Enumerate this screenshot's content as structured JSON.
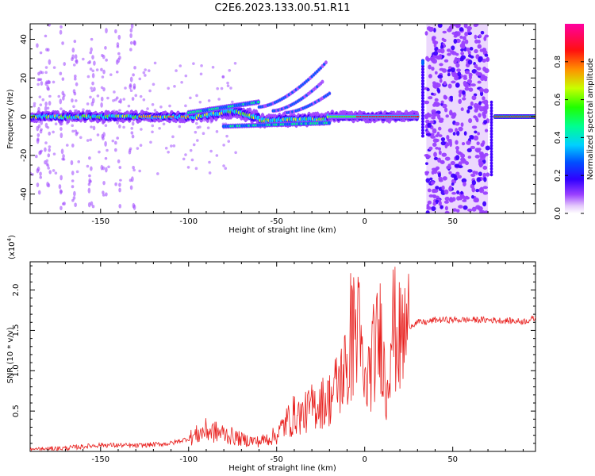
{
  "title": "C2E6.2023.133.00.51.R11",
  "chart_data": [
    {
      "type": "heatmap",
      "xlabel": "Height of straight line (km)",
      "ylabel": "Frequency (Hz)",
      "xlim": [
        -190,
        97
      ],
      "ylim": [
        -50,
        48
      ],
      "x_ticks": [
        -150,
        -100,
        -50,
        0,
        50
      ],
      "y_ticks": [
        -40,
        -20,
        0,
        20,
        40
      ],
      "colorbar": {
        "label": "Normalized spectral amplitude",
        "range": [
          0,
          1
        ],
        "ticks": [
          "0.0",
          "0.2",
          "0.4",
          "0.6",
          "0.8"
        ],
        "colormap": [
          "#ffffff",
          "#d8b4f8",
          "#7b00ff",
          "#0000ff",
          "#00c8ff",
          "#00ff80",
          "#c8ff00",
          "#ff8000",
          "#ff0000",
          "#ff00a0"
        ]
      },
      "features": [
        {
          "name": "main signal band",
          "x": [
            -190,
            30
          ],
          "frequency_hz": [
            -5,
            5
          ]
        },
        {
          "name": "upward tone branches",
          "x": [
            -60,
            -22
          ],
          "frequency_hz": [
            5,
            28
          ]
        },
        {
          "name": "noise burst",
          "x": [
            35,
            70
          ],
          "frequency_hz": [
            -50,
            48
          ]
        },
        {
          "name": "strong carrier",
          "x": [
            0,
            97
          ],
          "frequency_hz": [
            -1,
            1
          ]
        }
      ]
    },
    {
      "type": "line",
      "xlabel": "Height of straight line (km)",
      "ylabel": "SNR (10 * v/v)",
      "y_scale_label": "(x10",
      "y_scale_exp": "4",
      "y_scale_close": ")",
      "xlim": [
        -190,
        97
      ],
      "ylim": [
        0,
        23500
      ],
      "x_ticks": [
        -150,
        -100,
        -50,
        0,
        50
      ],
      "y_ticks": [
        "0.5",
        "1.0",
        "1.5",
        "2.0"
      ],
      "y_tick_values": [
        5000,
        10000,
        15000,
        20000
      ],
      "line_color": "#e8201e",
      "series": [
        {
          "x": [
            -190,
            -170,
            -150,
            -130,
            -110,
            -100,
            -90,
            -80,
            -70,
            -60,
            -50,
            -45,
            -40,
            -35,
            -30,
            -25,
            -20,
            -15,
            -10,
            -7,
            -5,
            -3,
            0,
            5,
            10,
            12,
            15,
            20,
            25,
            30,
            35,
            40,
            50,
            60,
            70,
            80,
            90,
            97
          ],
          "y": [
            200,
            400,
            800,
            700,
            1000,
            1600,
            2600,
            2200,
            1500,
            1200,
            2000,
            3500,
            4500,
            4500,
            5500,
            6000,
            6500,
            8500,
            10500,
            13500,
            16500,
            14000,
            7500,
            12000,
            15000,
            6000,
            16000,
            13500,
            15500,
            16000,
            16000,
            16300,
            16300,
            16300,
            16300,
            16200,
            16100,
            16500
          ]
        }
      ]
    }
  ]
}
